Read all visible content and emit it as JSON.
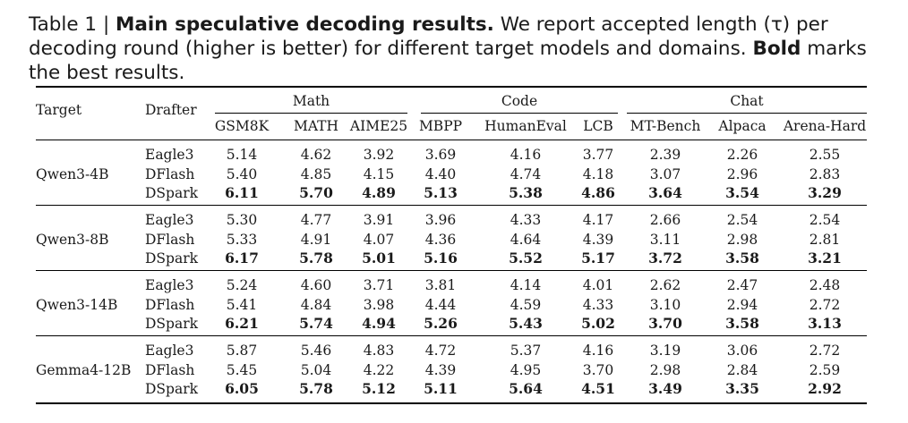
{
  "caption": {
    "prefix": "Table 1 | ",
    "title": "Main speculative decoding results.",
    "text1": " We report accepted length (τ) per decoding round (higher is better) for different target models and domains. ",
    "bold_word": "Bold",
    "text2": " marks the best results."
  },
  "header": {
    "target": "Target",
    "drafter": "Drafter",
    "groups": [
      "Math",
      "Code",
      "Chat"
    ],
    "columns": [
      "GSM8K",
      "MATH",
      "AIME25",
      "MBPP",
      "HumanEval",
      "LCB",
      "MT-Bench",
      "Alpaca",
      "Arena-Hard"
    ]
  },
  "blocks": [
    {
      "target": "Qwen3-4B",
      "rows": [
        {
          "drafter": "Eagle3",
          "values": [
            "5.14",
            "4.62",
            "3.92",
            "3.69",
            "4.16",
            "3.77",
            "2.39",
            "2.26",
            "2.55"
          ]
        },
        {
          "drafter": "DFlash",
          "values": [
            "5.40",
            "4.85",
            "4.15",
            "4.40",
            "4.74",
            "4.18",
            "3.07",
            "2.96",
            "2.83"
          ]
        },
        {
          "drafter": "DSpark",
          "values": [
            "6.11",
            "5.70",
            "4.89",
            "5.13",
            "5.38",
            "4.86",
            "3.64",
            "3.54",
            "3.29"
          ]
        }
      ]
    },
    {
      "target": "Qwen3-8B",
      "rows": [
        {
          "drafter": "Eagle3",
          "values": [
            "5.30",
            "4.77",
            "3.91",
            "3.96",
            "4.33",
            "4.17",
            "2.66",
            "2.54",
            "2.54"
          ]
        },
        {
          "drafter": "DFlash",
          "values": [
            "5.33",
            "4.91",
            "4.07",
            "4.36",
            "4.64",
            "4.39",
            "3.11",
            "2.98",
            "2.81"
          ]
        },
        {
          "drafter": "DSpark",
          "values": [
            "6.17",
            "5.78",
            "5.01",
            "5.16",
            "5.52",
            "5.17",
            "3.72",
            "3.58",
            "3.21"
          ]
        }
      ]
    },
    {
      "target": "Qwen3-14B",
      "rows": [
        {
          "drafter": "Eagle3",
          "values": [
            "5.24",
            "4.60",
            "3.71",
            "3.81",
            "4.14",
            "4.01",
            "2.62",
            "2.47",
            "2.48"
          ]
        },
        {
          "drafter": "DFlash",
          "values": [
            "5.41",
            "4.84",
            "3.98",
            "4.44",
            "4.59",
            "4.33",
            "3.10",
            "2.94",
            "2.72"
          ]
        },
        {
          "drafter": "DSpark",
          "values": [
            "6.21",
            "5.74",
            "4.94",
            "5.26",
            "5.43",
            "5.02",
            "3.70",
            "3.58",
            "3.13"
          ]
        }
      ]
    },
    {
      "target": "Gemma4-12B",
      "rows": [
        {
          "drafter": "Eagle3",
          "values": [
            "5.87",
            "5.46",
            "4.83",
            "4.72",
            "5.37",
            "4.16",
            "3.19",
            "3.06",
            "2.72"
          ]
        },
        {
          "drafter": "DFlash",
          "values": [
            "5.45",
            "5.04",
            "4.22",
            "4.39",
            "4.95",
            "3.70",
            "2.98",
            "2.84",
            "2.59"
          ]
        },
        {
          "drafter": "DSpark",
          "values": [
            "6.05",
            "5.78",
            "5.12",
            "5.11",
            "5.64",
            "4.51",
            "3.49",
            "3.35",
            "2.92"
          ]
        }
      ]
    }
  ],
  "best_row_label": "DSpark"
}
